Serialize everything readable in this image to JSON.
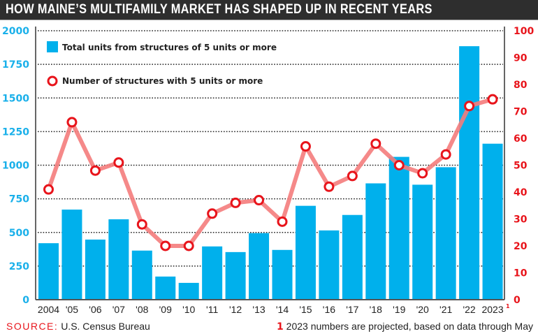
{
  "header": {
    "title": "HOW MAINE’S MULTIFAMILY MARKET HAS SHAPED UP IN RECENT YEARS"
  },
  "colors": {
    "bar": "#00b0ec",
    "line": "#f47c7c",
    "marker": "#e8141b",
    "left_axis_text": "#1ab0ea",
    "right_axis_text": "#e8141b",
    "title_bg": "#2e2e2e"
  },
  "chart_data": {
    "type": "bar",
    "title": "HOW MAINE’S MULTIFAMILY MARKET HAS SHAPED UP IN RECENT YEARS",
    "categories": [
      "2004",
      "'05",
      "'06",
      "'07",
      "'08",
      "'09",
      "'10",
      "'11",
      "'12",
      "'13",
      "'14",
      "'15",
      "'16",
      "'17",
      "'18",
      "'19",
      "'20",
      "'21",
      "'22",
      "2023"
    ],
    "category_footnote": {
      "index": 19,
      "mark": "1"
    },
    "series": [
      {
        "name": "Total units from structures of 5 units or more",
        "type": "bar",
        "axis": "left",
        "values": [
          420,
          670,
          447,
          598,
          365,
          172,
          125,
          396,
          354,
          495,
          370,
          698,
          515,
          630,
          865,
          1062,
          855,
          985,
          1885,
          1160
        ]
      },
      {
        "name": "Number of structures with 5 units or more",
        "type": "line",
        "axis": "right",
        "values": [
          41,
          66,
          48,
          51,
          28,
          20,
          20,
          32,
          36,
          37,
          29,
          57,
          42,
          46,
          58,
          50,
          47,
          54,
          72,
          74.5
        ]
      }
    ],
    "y_left": {
      "ylim": [
        0,
        2000
      ],
      "ticks": [
        "0",
        "250",
        "500",
        "750",
        "1000",
        "1250",
        "1500",
        "1750",
        "2000"
      ]
    },
    "y_right": {
      "ylim": [
        0,
        100
      ],
      "ticks": [
        "0",
        "10",
        "20",
        "30",
        "40",
        "50",
        "60",
        "70",
        "80",
        "90",
        "100"
      ]
    },
    "xlabel": "",
    "ylabel": "",
    "grid": "horizontal dotted",
    "legend_placement": "top-left"
  },
  "legend": {
    "bar_label": "Total units from structures of 5 units or more",
    "line_label": "Number of structures with 5 units or more"
  },
  "footer": {
    "source_label": "SOURCE:",
    "source_text": "U.S. Census Bureau",
    "note_number": "1",
    "note_text": "2023 numbers are projected, based on data through May"
  }
}
